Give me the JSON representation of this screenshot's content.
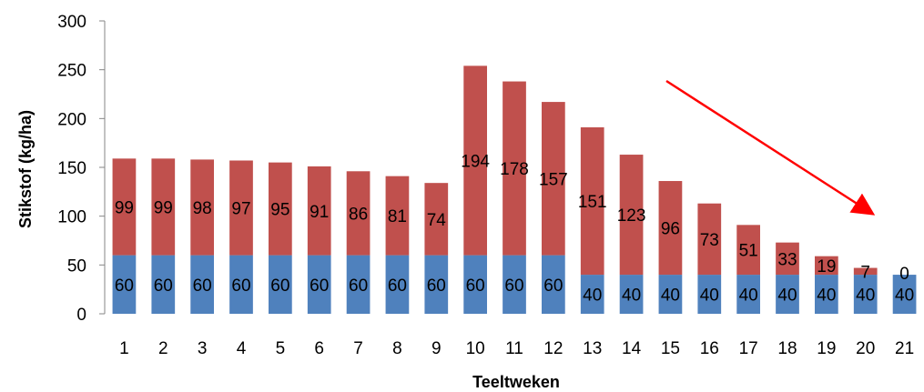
{
  "chart_data": {
    "type": "bar",
    "stacked": true,
    "xlabel": "Teeltweken",
    "ylabel": "Stikstof (kg/ha)",
    "ylim": [
      0,
      300
    ],
    "yticks": [
      0,
      50,
      100,
      150,
      200,
      250,
      300
    ],
    "categories": [
      "1",
      "2",
      "3",
      "4",
      "5",
      "6",
      "7",
      "8",
      "9",
      "10",
      "11",
      "12",
      "13",
      "14",
      "15",
      "16",
      "17",
      "18",
      "19",
      "20",
      "21"
    ],
    "series": [
      {
        "color": "#4F81BD",
        "values": [
          60,
          60,
          60,
          60,
          60,
          60,
          60,
          60,
          60,
          60,
          60,
          60,
          40,
          40,
          40,
          40,
          40,
          40,
          40,
          40,
          40
        ]
      },
      {
        "color": "#C0504D",
        "values": [
          99,
          99,
          98,
          97,
          95,
          91,
          86,
          81,
          74,
          194,
          178,
          157,
          151,
          123,
          96,
          73,
          51,
          33,
          19,
          7,
          0
        ]
      }
    ],
    "annotation": {
      "type": "arrow",
      "color": "#FF0000",
      "description": "downward trend arrow"
    },
    "grid": false,
    "legend": "none"
  }
}
